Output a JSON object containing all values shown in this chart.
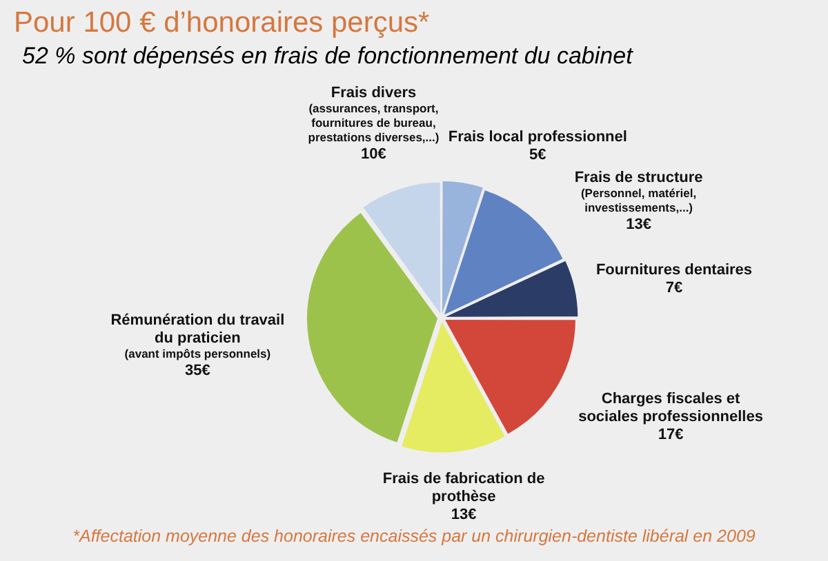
{
  "chart_data": {
    "type": "pie",
    "title": "Pour 100 € d’honoraires perçus*",
    "subtitle": "52 % sont dépensés en frais de fonctionnement du cabinet",
    "categories": [
      "Frais divers (assurances, transport, fournitures de bureau, prestations diverses,...)",
      "Frais local professionnel",
      "Frais de structure (Personnel, matériel, investissements,...)",
      "Fournitures dentaires",
      "Charges fiscales et sociales professionnelles",
      "Frais de fabrication de prothèse",
      "Rémunération du travail du praticien (avant impôts personnels)"
    ],
    "values": [
      10,
      5,
      13,
      7,
      17,
      13,
      35
    ],
    "colors": [
      "#c6d6ea",
      "#98b4dc",
      "#5f82c2",
      "#2b3d66",
      "#d2473a",
      "#e6ec62",
      "#9cc24c"
    ],
    "value_labels": [
      "10€",
      "5€",
      "13€",
      "7€",
      "17€",
      "13€",
      "35€"
    ],
    "annotations": [
      "*Affectation moyenne des honoraires encaissés par un chirurgien-dentiste libéral en 2009"
    ]
  }
}
